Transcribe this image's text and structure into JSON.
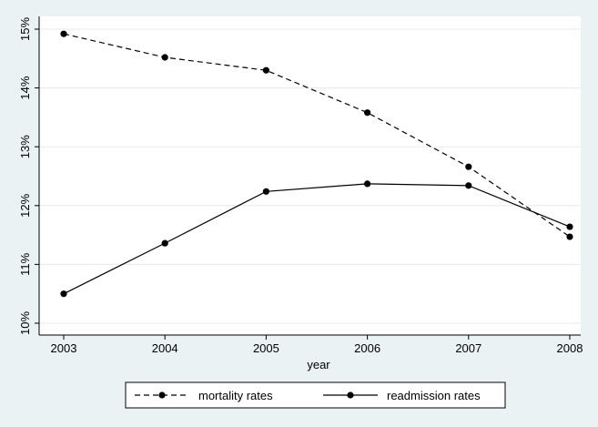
{
  "chart_data": {
    "type": "line",
    "title": "",
    "xlabel": "year",
    "ylabel": "",
    "x": [
      2003,
      2004,
      2005,
      2006,
      2007,
      2008
    ],
    "x_tick_labels": [
      "2003",
      "2004",
      "2005",
      "2006",
      "2007",
      "2008"
    ],
    "ylim": [
      10,
      15
    ],
    "xlim": [
      2003,
      2008
    ],
    "y_ticks": [
      10,
      11,
      12,
      13,
      14,
      15
    ],
    "y_tick_labels": [
      "10%",
      "11%",
      "12%",
      "13%",
      "14%",
      "15%"
    ],
    "grid": "horizontal",
    "legend_position": "bottom",
    "series": [
      {
        "name": "mortality rates",
        "line_style": "dashed",
        "marker": "filled-circle",
        "color": "#000000",
        "values": [
          14.92,
          14.52,
          14.3,
          13.58,
          12.66,
          11.47
        ]
      },
      {
        "name": "readmission rates",
        "line_style": "solid",
        "marker": "filled-circle",
        "color": "#000000",
        "values": [
          10.5,
          11.36,
          12.24,
          12.37,
          12.34,
          11.64
        ]
      }
    ],
    "colors": {
      "outer_background": "#eaf2f3",
      "plot_background": "#ffffff",
      "grid": "#e4eaec",
      "line": "#000000"
    }
  }
}
